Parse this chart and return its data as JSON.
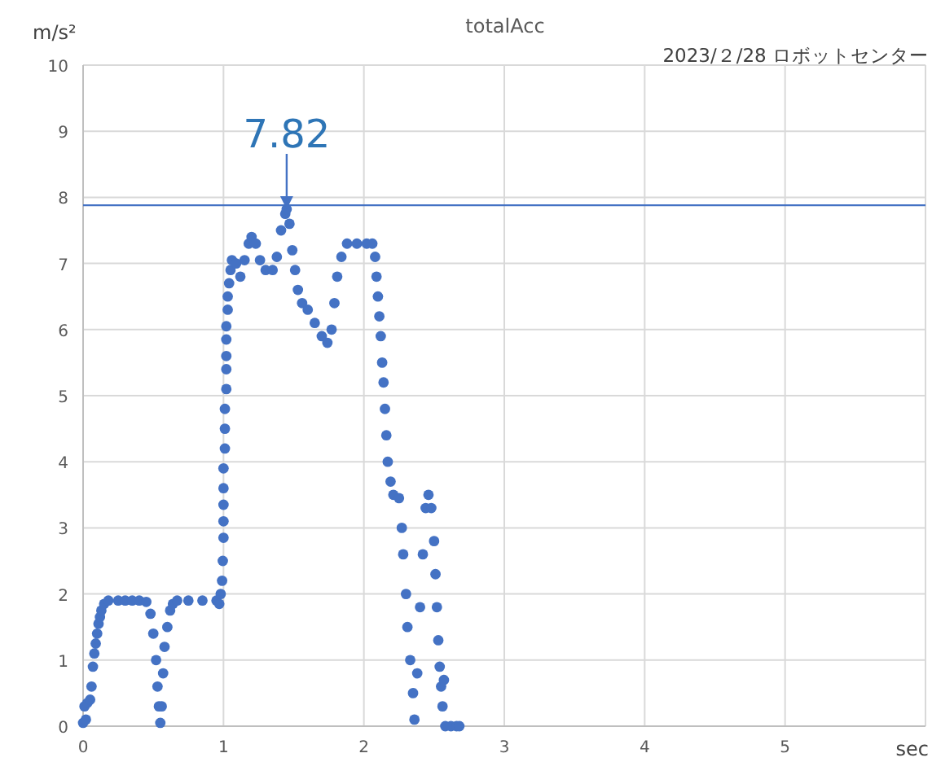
{
  "chart_data": {
    "type": "scatter",
    "title": "totalAcc",
    "subtitle": "2023/２/28 ロボットセンター",
    "xlabel": "sec",
    "ylabel": "m/s²",
    "color": "#4472c4",
    "marker": "circle",
    "grid": true,
    "xlim": [
      0,
      6
    ],
    "ylim": [
      0,
      10
    ],
    "xticks": [
      0,
      1,
      2,
      3,
      4,
      5,
      {
        "value": 6,
        "label": null
      }
    ],
    "yticks": [
      0,
      1,
      2,
      3,
      4,
      5,
      6,
      7,
      8,
      9,
      10
    ],
    "ref_lines": [
      {
        "axis": "y",
        "value": 7.88,
        "color": "#4472c4"
      }
    ],
    "annotations": [
      {
        "text": "7.82",
        "x": 1.45,
        "y": 7.82
      }
    ],
    "x": [
      0,
      0.01,
      0.02,
      0.03,
      0.05,
      0.06,
      0.07,
      0.08,
      0.09,
      0.1,
      0.11,
      0.12,
      0.13,
      0.15,
      0.18,
      0.25,
      0.3,
      0.35,
      0.4,
      0.45,
      0.48,
      0.5,
      0.52,
      0.53,
      0.54,
      0.55,
      0.56,
      0.57,
      0.58,
      0.6,
      0.62,
      0.64,
      0.67,
      0.75,
      0.85,
      0.95,
      0.97,
      0.98,
      0.99,
      0.995,
      1.0,
      1.0,
      1.0,
      1.0,
      1.0,
      1.01,
      1.01,
      1.01,
      1.02,
      1.02,
      1.02,
      1.02,
      1.02,
      1.03,
      1.03,
      1.04,
      1.05,
      1.06,
      1.09,
      1.12,
      1.15,
      1.18,
      1.2,
      1.23,
      1.26,
      1.3,
      1.35,
      1.38,
      1.41,
      1.44,
      1.45,
      1.47,
      1.49,
      1.51,
      1.53,
      1.56,
      1.6,
      1.65,
      1.7,
      1.74,
      1.77,
      1.79,
      1.81,
      1.84,
      1.88,
      1.95,
      2.02,
      2.06,
      2.08,
      2.09,
      2.1,
      2.11,
      2.12,
      2.13,
      2.14,
      2.15,
      2.16,
      2.17,
      2.19,
      2.21,
      2.25,
      2.27,
      2.28,
      2.3,
      2.31,
      2.33,
      2.35,
      2.36,
      2.38,
      2.4,
      2.42,
      2.44,
      2.46,
      2.48,
      2.5,
      2.51,
      2.52,
      2.53,
      2.54,
      2.55,
      2.56,
      2.57,
      2.58,
      2.62,
      2.66,
      2.68
    ],
    "values": [
      0.05,
      0.3,
      0.1,
      0.35,
      0.4,
      0.6,
      0.9,
      1.1,
      1.25,
      1.4,
      1.55,
      1.65,
      1.75,
      1.85,
      1.9,
      1.9,
      1.9,
      1.9,
      1.9,
      1.88,
      1.7,
      1.4,
      1.0,
      0.6,
      0.3,
      0.05,
      0.3,
      0.8,
      1.2,
      1.5,
      1.75,
      1.85,
      1.9,
      1.9,
      1.9,
      1.9,
      1.85,
      2.0,
      2.2,
      2.5,
      2.85,
      3.1,
      3.35,
      3.6,
      3.9,
      4.2,
      4.5,
      4.8,
      5.1,
      5.4,
      5.6,
      5.85,
      6.05,
      6.3,
      6.5,
      6.7,
      6.9,
      7.05,
      7.0,
      6.8,
      7.05,
      7.3,
      7.4,
      7.3,
      7.05,
      6.9,
      6.9,
      7.1,
      7.5,
      7.75,
      7.82,
      7.6,
      7.2,
      6.9,
      6.6,
      6.4,
      6.3,
      6.1,
      5.9,
      5.8,
      6.0,
      6.4,
      6.8,
      7.1,
      7.3,
      7.3,
      7.3,
      7.3,
      7.1,
      6.8,
      6.5,
      6.2,
      5.9,
      5.5,
      5.2,
      4.8,
      4.4,
      4.0,
      3.7,
      3.5,
      3.45,
      3.0,
      2.6,
      2.0,
      1.5,
      1.0,
      0.5,
      0.1,
      0.8,
      1.8,
      2.6,
      3.3,
      3.5,
      3.3,
      2.8,
      2.3,
      1.8,
      1.3,
      0.9,
      0.6,
      0.3,
      0.7,
      0.0,
      0.0,
      0.0,
      0.0
    ]
  }
}
